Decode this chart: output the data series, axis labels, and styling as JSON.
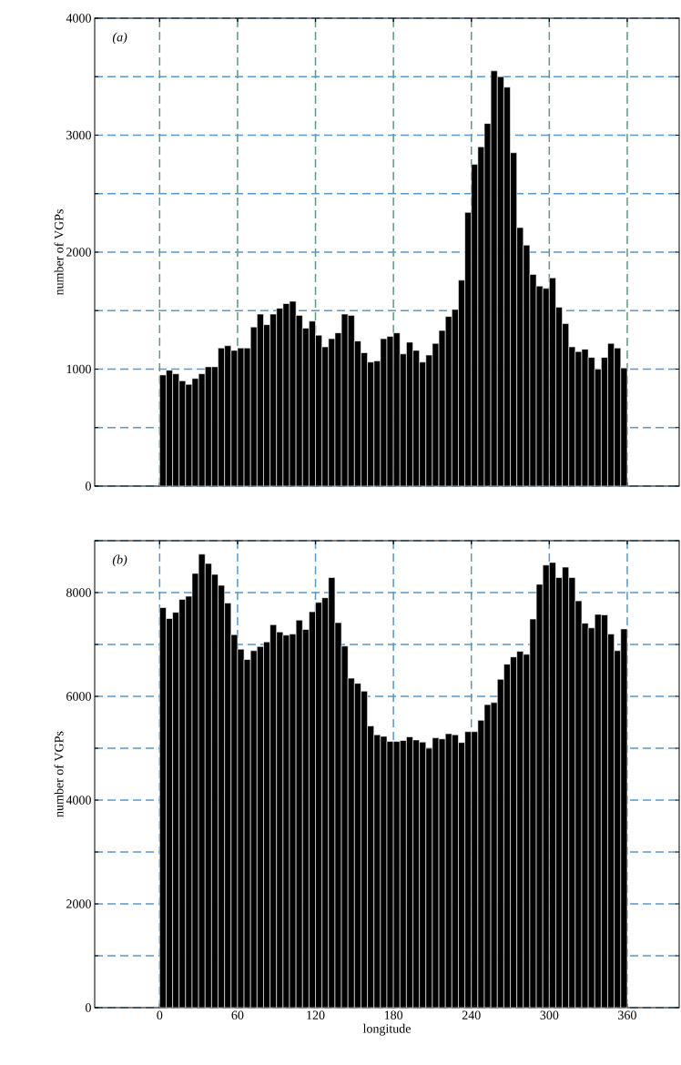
{
  "chart_data": [
    {
      "type": "histogram",
      "annotations": [
        "(a)"
      ],
      "ylabel": "number of VGPs",
      "bins": [
        0,
        5,
        10,
        15,
        20,
        25,
        30,
        35,
        40,
        45,
        50,
        55,
        60,
        65,
        70,
        75,
        80,
        85,
        90,
        95,
        100,
        105,
        110,
        115,
        120,
        125,
        130,
        135,
        140,
        145,
        150,
        155,
        160,
        165,
        170,
        175,
        180,
        185,
        190,
        195,
        200,
        205,
        210,
        215,
        220,
        225,
        230,
        235,
        240,
        245,
        250,
        255,
        260,
        265,
        270,
        275,
        280,
        285,
        290,
        295,
        300,
        305,
        310,
        315,
        320,
        325,
        330,
        335,
        340,
        345,
        350,
        355,
        360
      ],
      "values": [
        950,
        990,
        960,
        900,
        870,
        920,
        960,
        1020,
        1020,
        1180,
        1200,
        1160,
        1180,
        1180,
        1360,
        1470,
        1380,
        1470,
        1520,
        1560,
        1580,
        1460,
        1350,
        1410,
        1290,
        1190,
        1260,
        1310,
        1470,
        1460,
        1240,
        1140,
        1060,
        1070,
        1260,
        1280,
        1310,
        1130,
        1230,
        1160,
        1060,
        1120,
        1220,
        1330,
        1450,
        1510,
        1760,
        2340,
        2750,
        2900,
        3100,
        3550,
        3500,
        3410,
        2850,
        2210,
        2060,
        1810,
        1710,
        1690,
        1780,
        1530,
        1390,
        1190,
        1150,
        1170,
        1100,
        1000,
        1100,
        1220,
        1180,
        1010
      ],
      "color": "#000000",
      "xlim": [
        -50,
        400
      ],
      "xticks": [
        0,
        60,
        120,
        180,
        240,
        300,
        360
      ],
      "ylim": [
        0,
        4000
      ],
      "yticks": [
        0,
        {
          "value": 500,
          "label": null
        },
        1000,
        {
          "value": 1500,
          "label": null
        },
        2000,
        {
          "value": 2500,
          "label": null
        },
        3000,
        {
          "value": 3500,
          "label": null
        },
        4000
      ],
      "grid": true,
      "tick_labels": "y"
    },
    {
      "type": "histogram",
      "annotations": [
        "(b)"
      ],
      "ylabel": "number of VGPs",
      "xlabel": "longitude",
      "bins": [
        0,
        5,
        10,
        15,
        20,
        25,
        30,
        35,
        40,
        45,
        50,
        55,
        60,
        65,
        70,
        75,
        80,
        85,
        90,
        95,
        100,
        105,
        110,
        115,
        120,
        125,
        130,
        135,
        140,
        145,
        150,
        155,
        160,
        165,
        170,
        175,
        180,
        185,
        190,
        195,
        200,
        205,
        210,
        215,
        220,
        225,
        230,
        235,
        240,
        245,
        250,
        255,
        260,
        265,
        270,
        275,
        280,
        285,
        290,
        295,
        300,
        305,
        310,
        315,
        320,
        325,
        330,
        335,
        340,
        345,
        350,
        355,
        360
      ],
      "values": [
        7710,
        7500,
        7620,
        7870,
        7930,
        8370,
        8740,
        8560,
        8350,
        8140,
        7800,
        7190,
        6910,
        6710,
        6880,
        6960,
        7050,
        7380,
        7240,
        7180,
        7200,
        7470,
        7290,
        7630,
        7810,
        7900,
        8290,
        7420,
        6970,
        6350,
        6250,
        6100,
        5430,
        5260,
        5230,
        5130,
        5130,
        5150,
        5220,
        5160,
        5120,
        5000,
        5200,
        5180,
        5280,
        5260,
        5110,
        5320,
        5320,
        5540,
        5840,
        5880,
        6330,
        6620,
        6760,
        6870,
        6810,
        7490,
        8160,
        8530,
        8580,
        8290,
        8490,
        8290,
        7840,
        7410,
        7320,
        7580,
        7570,
        7200,
        6880,
        7300
      ],
      "color": "#000000",
      "xlim": [
        -50,
        400
      ],
      "xticks": [
        0,
        60,
        120,
        180,
        240,
        300,
        360
      ],
      "ylim": [
        0,
        9000
      ],
      "yticks": [
        0,
        {
          "value": 1000,
          "label": null
        },
        2000,
        {
          "value": 3000,
          "label": null
        },
        4000,
        {
          "value": 5000,
          "label": null
        },
        6000,
        {
          "value": 7000,
          "label": null
        },
        8000,
        {
          "value": 9000,
          "label": null
        }
      ],
      "grid": true
    }
  ]
}
